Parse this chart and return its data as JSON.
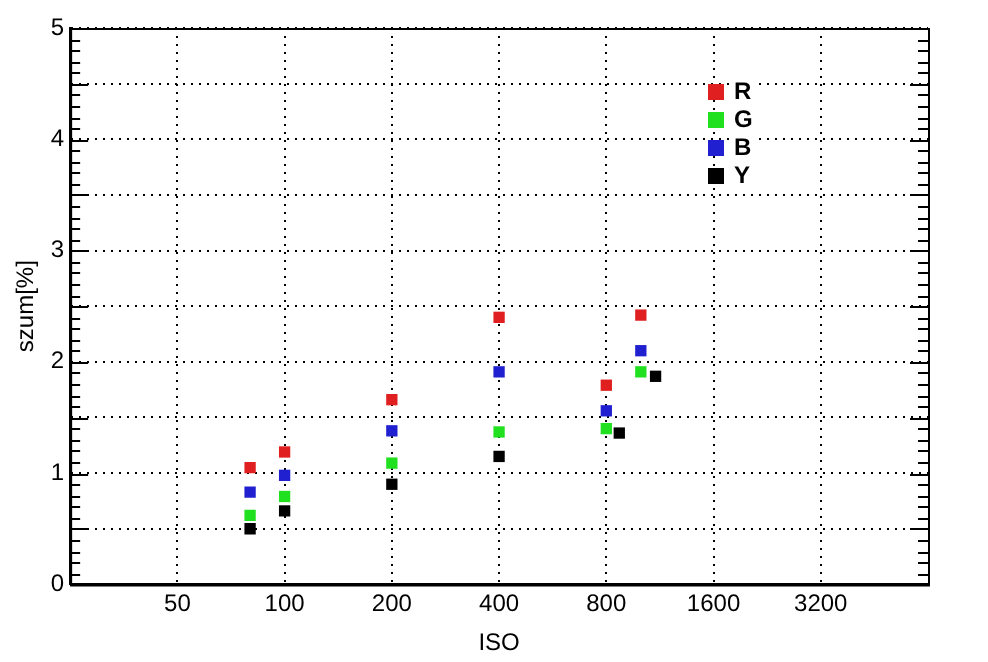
{
  "chart_data": {
    "type": "scatter",
    "xlabel": "ISO",
    "ylabel": "szum[%]",
    "log": "x",
    "xlim": [
      25,
      6400
    ],
    "xticks": [
      50,
      100,
      200,
      400,
      800,
      1600,
      3200
    ],
    "ylim": [
      0,
      5
    ],
    "yticks": [
      0,
      {
        "value": 0.5,
        "label": null
      },
      1,
      {
        "value": 1.5,
        "label": null
      },
      2,
      {
        "value": 2.5,
        "label": null
      },
      3,
      {
        "value": 3.5,
        "label": null
      },
      4,
      {
        "value": 4.5,
        "label": null
      },
      5
    ],
    "grid": true,
    "legend": "top right",
    "marker": "square",
    "series": [
      {
        "name": "R",
        "color": "#e02020",
        "x": [
          80,
          100,
          200,
          400,
          800,
          1000
        ],
        "values": [
          1.05,
          1.19,
          1.66,
          2.4,
          1.79,
          2.42
        ]
      },
      {
        "name": "G",
        "color": "#20e020",
        "x": [
          80,
          100,
          200,
          400,
          800,
          1000
        ],
        "values": [
          0.62,
          0.79,
          1.09,
          1.37,
          1.4,
          1.91
        ]
      },
      {
        "name": "B",
        "color": "#2020d0",
        "x": [
          80,
          100,
          200,
          400,
          800,
          1000
        ],
        "values": [
          0.83,
          0.98,
          1.38,
          1.91,
          1.56,
          2.1
        ]
      },
      {
        "name": "Y",
        "color": "#000000",
        "x": [
          80,
          100,
          200,
          400,
          870,
          1100
        ],
        "values": [
          0.5,
          0.66,
          0.9,
          1.15,
          1.36,
          1.87
        ]
      }
    ]
  }
}
